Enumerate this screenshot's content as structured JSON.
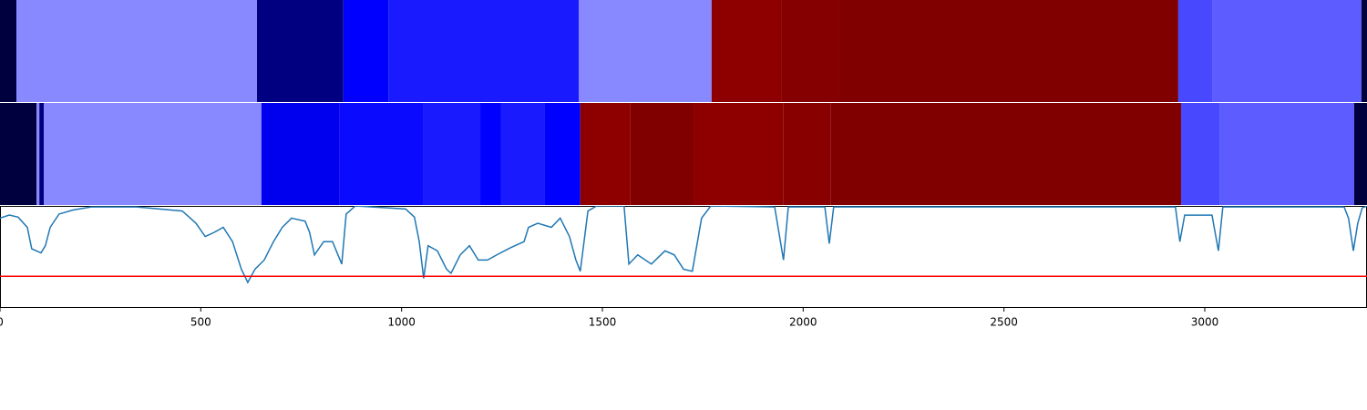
{
  "chart_data": [
    {
      "type": "segments",
      "xlim": [
        0,
        3404
      ],
      "segments": [
        {
          "start": 0,
          "end": 41,
          "color": "#00003f"
        },
        {
          "start": 41,
          "end": 640,
          "color": "#8888ff"
        },
        {
          "start": 640,
          "end": 855,
          "color": "#000080"
        },
        {
          "start": 855,
          "end": 967,
          "color": "#0000ff"
        },
        {
          "start": 967,
          "end": 1441,
          "color": "#1a1aff"
        },
        {
          "start": 1441,
          "end": 1772,
          "color": "#8888ff"
        },
        {
          "start": 1772,
          "end": 1945,
          "color": "#8e0000"
        },
        {
          "start": 1945,
          "end": 2090,
          "color": "#850000"
        },
        {
          "start": 2090,
          "end": 2934,
          "color": "#800000"
        },
        {
          "start": 2934,
          "end": 3020,
          "color": "#4848ff"
        },
        {
          "start": 3020,
          "end": 3390,
          "color": "#5c5cff"
        },
        {
          "start": 3390,
          "end": 3404,
          "color": "#00003f"
        }
      ]
    },
    {
      "type": "segments",
      "xlim": [
        0,
        3404
      ],
      "segments": [
        {
          "start": 0,
          "end": 91,
          "color": "#00003f"
        },
        {
          "start": 91,
          "end": 98,
          "color": "#8888ff"
        },
        {
          "start": 98,
          "end": 109,
          "color": "#000080"
        },
        {
          "start": 109,
          "end": 651,
          "color": "#8888ff"
        },
        {
          "start": 651,
          "end": 846,
          "color": "#0000ee"
        },
        {
          "start": 846,
          "end": 1053,
          "color": "#0a0aff"
        },
        {
          "start": 1053,
          "end": 1196,
          "color": "#1a1aff"
        },
        {
          "start": 1196,
          "end": 1248,
          "color": "#0000ff"
        },
        {
          "start": 1248,
          "end": 1357,
          "color": "#1a1aff"
        },
        {
          "start": 1357,
          "end": 1445,
          "color": "#0000ff"
        },
        {
          "start": 1445,
          "end": 1570,
          "color": "#8e0000"
        },
        {
          "start": 1570,
          "end": 1727,
          "color": "#800000"
        },
        {
          "start": 1727,
          "end": 1951,
          "color": "#8e0000"
        },
        {
          "start": 1951,
          "end": 2069,
          "color": "#880000"
        },
        {
          "start": 2069,
          "end": 2941,
          "color": "#800000"
        },
        {
          "start": 2941,
          "end": 3038,
          "color": "#4848ff"
        },
        {
          "start": 3038,
          "end": 3372,
          "color": "#5c5cff"
        },
        {
          "start": 3372,
          "end": 3404,
          "color": "#00003f"
        }
      ]
    },
    {
      "type": "line",
      "color": "#1f77b4",
      "threshold": 0.31,
      "threshold_color": "#ff0000",
      "xlim": [
        0,
        3404
      ],
      "ylim": [
        0,
        1
      ],
      "xticks": [
        0,
        500,
        1000,
        1500,
        2000,
        2500,
        3000
      ],
      "x": [
        0,
        23,
        45,
        68,
        79,
        102,
        113,
        125,
        147,
        182,
        227,
        340,
        454,
        488,
        511,
        533,
        556,
        579,
        601,
        617,
        635,
        658,
        681,
        703,
        726,
        760,
        771,
        783,
        806,
        828,
        851,
        862,
        885,
        1010,
        1032,
        1044,
        1055,
        1066,
        1089,
        1112,
        1123,
        1146,
        1169,
        1191,
        1214,
        1237,
        1271,
        1305,
        1316,
        1339,
        1373,
        1395,
        1418,
        1434,
        1445,
        1464,
        1486,
        1554,
        1566,
        1588,
        1622,
        1656,
        1679,
        1702,
        1724,
        1747,
        1770,
        1929,
        1951,
        1963,
        2054,
        2065,
        2076,
        2927,
        2938,
        2950,
        3018,
        3034,
        3045,
        3347,
        3358,
        3370,
        3381,
        3392,
        3404
      ],
      "values": [
        0.88,
        0.91,
        0.89,
        0.79,
        0.58,
        0.54,
        0.61,
        0.79,
        0.92,
        0.96,
        0.99,
        0.99,
        0.95,
        0.83,
        0.7,
        0.74,
        0.79,
        0.65,
        0.38,
        0.25,
        0.38,
        0.47,
        0.65,
        0.79,
        0.88,
        0.85,
        0.74,
        0.52,
        0.65,
        0.65,
        0.43,
        0.92,
        1.0,
        0.97,
        0.89,
        0.65,
        0.29,
        0.61,
        0.56,
        0.38,
        0.34,
        0.52,
        0.61,
        0.47,
        0.47,
        0.52,
        0.59,
        0.65,
        0.79,
        0.83,
        0.79,
        0.88,
        0.7,
        0.47,
        0.36,
        0.95,
        1.0,
        1.0,
        0.43,
        0.52,
        0.43,
        0.56,
        0.52,
        0.38,
        0.36,
        0.88,
        1.0,
        0.99,
        0.47,
        0.99,
        0.99,
        0.63,
        0.99,
        0.99,
        0.65,
        0.91,
        0.91,
        0.56,
        0.99,
        0.99,
        0.88,
        0.56,
        0.83,
        0.98,
        1.0
      ]
    }
  ]
}
